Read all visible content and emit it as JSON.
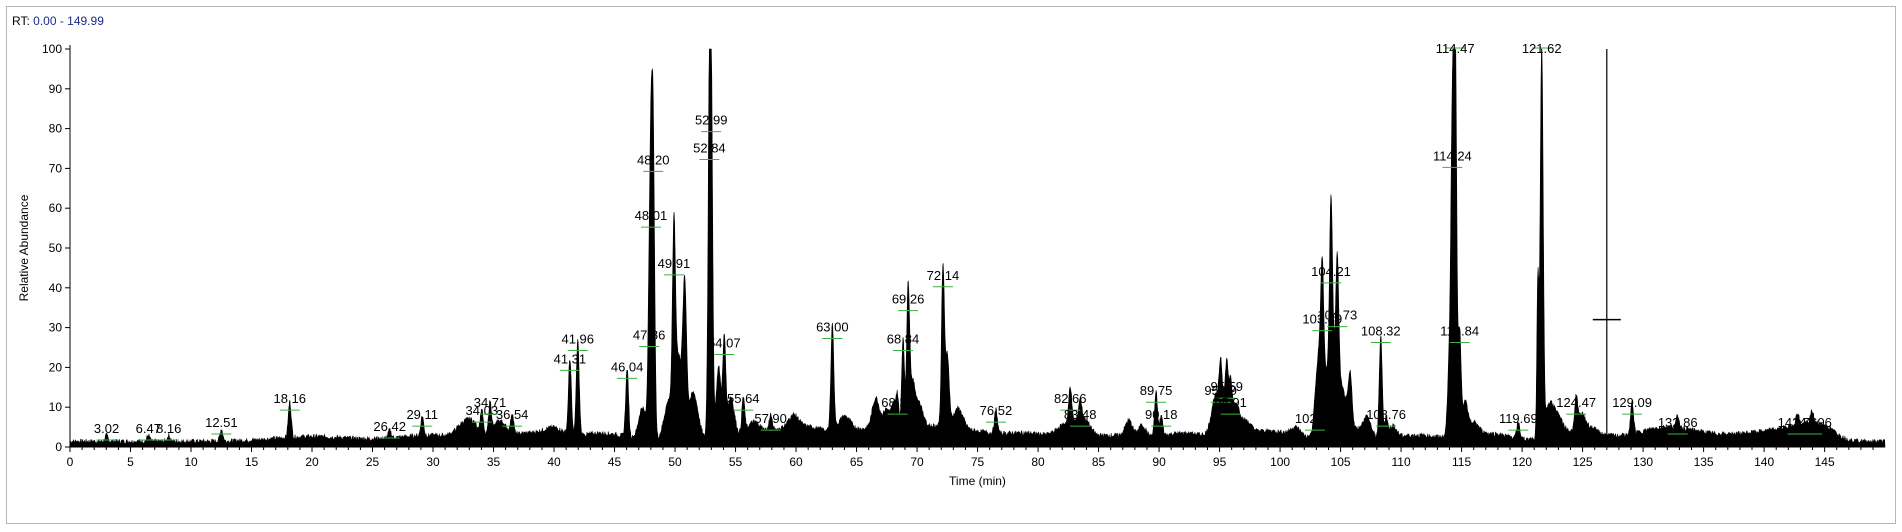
{
  "header": {
    "rt_prefix": "RT:",
    "rt_range": "0.00 - 149.99"
  },
  "chart_data": {
    "type": "line",
    "xlabel": "Time (min)",
    "ylabel": "Relative Abundance",
    "xlim": [
      0,
      149.99
    ],
    "ylim": [
      0,
      100
    ],
    "x_ticks": [
      0,
      5,
      10,
      15,
      20,
      25,
      30,
      35,
      40,
      45,
      50,
      55,
      60,
      65,
      70,
      75,
      80,
      85,
      90,
      95,
      100,
      105,
      110,
      115,
      120,
      125,
      130,
      135,
      140,
      145
    ],
    "y_ticks": [
      0,
      10,
      20,
      30,
      40,
      50,
      60,
      70,
      80,
      90,
      100
    ],
    "line_color": "#000000",
    "label_connector_color": "#3cb043",
    "marker": {
      "x": 127.0,
      "y": 32
    },
    "peaks": [
      {
        "label": "3.02",
        "x": 3.02,
        "y": 1.5
      },
      {
        "label": "6.47",
        "x": 6.47,
        "y": 1.5
      },
      {
        "label": "8.16",
        "x": 8.16,
        "y": 1.5
      },
      {
        "label": "12.51",
        "x": 12.51,
        "y": 3
      },
      {
        "label": "18.16",
        "x": 18.16,
        "y": 9
      },
      {
        "label": "26.42",
        "x": 26.42,
        "y": 2
      },
      {
        "label": "29.11",
        "x": 29.11,
        "y": 5
      },
      {
        "label": "34.03",
        "x": 34.03,
        "y": 6
      },
      {
        "label": "34.71",
        "x": 34.71,
        "y": 8
      },
      {
        "label": "36.54",
        "x": 36.54,
        "y": 5
      },
      {
        "label": "41.31",
        "x": 41.31,
        "y": 19
      },
      {
        "label": "41.96",
        "x": 41.96,
        "y": 24
      },
      {
        "label": "46.04",
        "x": 46.04,
        "y": 17
      },
      {
        "label": "47.86",
        "x": 47.86,
        "y": 25
      },
      {
        "label": "48.01",
        "x": 48.01,
        "y": 55
      },
      {
        "label": "48.20",
        "x": 48.2,
        "y": 69
      },
      {
        "label": "49.91",
        "x": 49.91,
        "y": 43
      },
      {
        "label": "52.84",
        "x": 52.84,
        "y": 72
      },
      {
        "label": "52.99",
        "x": 52.99,
        "y": 79
      },
      {
        "label": "54.07",
        "x": 54.07,
        "y": 23
      },
      {
        "label": "55.64",
        "x": 55.64,
        "y": 9
      },
      {
        "label": "57.90",
        "x": 57.9,
        "y": 4
      },
      {
        "label": "63.00",
        "x": 63.0,
        "y": 27
      },
      {
        "label": "68.39",
        "x": 68.39,
        "y": 8
      },
      {
        "label": "68.84",
        "x": 68.84,
        "y": 24
      },
      {
        "label": "69.26",
        "x": 69.26,
        "y": 34
      },
      {
        "label": "72.14",
        "x": 72.14,
        "y": 40
      },
      {
        "label": "76.52",
        "x": 76.52,
        "y": 6
      },
      {
        "label": "82.66",
        "x": 82.66,
        "y": 9
      },
      {
        "label": "83.48",
        "x": 83.48,
        "y": 5
      },
      {
        "label": "89.75",
        "x": 89.75,
        "y": 11
      },
      {
        "label": "90.18",
        "x": 90.18,
        "y": 5
      },
      {
        "label": "95.09",
        "x": 95.09,
        "y": 11
      },
      {
        "label": "95.59",
        "x": 95.59,
        "y": 12
      },
      {
        "label": "95.91",
        "x": 95.91,
        "y": 8
      },
      {
        "label": "102.87",
        "x": 102.87,
        "y": 4
      },
      {
        "label": "103.49",
        "x": 103.49,
        "y": 29
      },
      {
        "label": "104.21",
        "x": 104.21,
        "y": 41
      },
      {
        "label": "104.73",
        "x": 104.73,
        "y": 30
      },
      {
        "label": "108.32",
        "x": 108.32,
        "y": 26
      },
      {
        "label": "108.76",
        "x": 108.76,
        "y": 5
      },
      {
        "label": "114.24",
        "x": 114.24,
        "y": 70
      },
      {
        "label": "114.47",
        "x": 114.47,
        "y": 100
      },
      {
        "label": "114.84",
        "x": 114.84,
        "y": 26
      },
      {
        "label": "119.69",
        "x": 119.69,
        "y": 4
      },
      {
        "label": "121.62",
        "x": 121.62,
        "y": 100
      },
      {
        "label": "124.47",
        "x": 124.47,
        "y": 8
      },
      {
        "label": "129.09",
        "x": 129.09,
        "y": 8
      },
      {
        "label": "132.86",
        "x": 132.86,
        "y": 3
      },
      {
        "label": "142.76",
        "x": 142.76,
        "y": 3
      },
      {
        "label": "143.96",
        "x": 143.96,
        "y": 3
      }
    ]
  }
}
